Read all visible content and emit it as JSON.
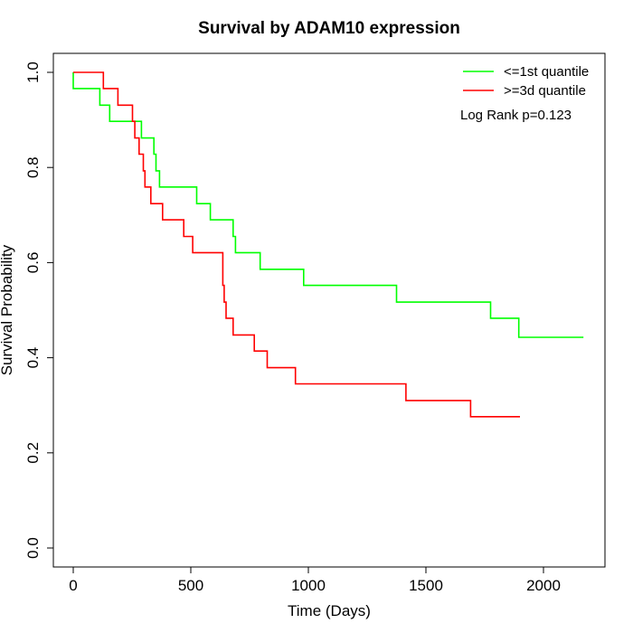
{
  "chart_data": {
    "type": "line",
    "step": true,
    "title": "Survival by ADAM10 expression",
    "xlabel": "Time (Days)",
    "ylabel": "Survival Probability",
    "xlim": [
      0,
      2170
    ],
    "ylim": [
      0,
      1
    ],
    "xticks": [
      0,
      500,
      1000,
      1500,
      2000
    ],
    "yticks": [
      0.0,
      0.2,
      0.4,
      0.6,
      0.8,
      1.0
    ],
    "xtick_labels": [
      "0",
      "500",
      "1000",
      "1500",
      "2000"
    ],
    "ytick_labels": [
      "0.0",
      "0.2",
      "0.4",
      "0.6",
      "0.8",
      "1.0"
    ],
    "grid": false,
    "legend_position": "top-right",
    "annotation": "Log Rank p=0.123",
    "series": [
      {
        "name": "<=1st quantile",
        "color": "#00ff00",
        "x": [
          0,
          0,
          113,
          155,
          290,
          343,
          352,
          367,
          525,
          583,
          680,
          690,
          700,
          795,
          980,
          1375,
          1775,
          1895,
          2170
        ],
        "y": [
          1.0,
          0.966,
          0.931,
          0.897,
          0.862,
          0.828,
          0.793,
          0.759,
          0.724,
          0.69,
          0.655,
          0.621,
          0.621,
          0.586,
          0.552,
          0.517,
          0.483,
          0.443,
          0.443
        ]
      },
      {
        "name": ">=3d quantile",
        "color": "#ff0000",
        "x": [
          0,
          128,
          190,
          252,
          262,
          280,
          298,
          305,
          330,
          380,
          470,
          508,
          636,
          642,
          650,
          680,
          770,
          825,
          945,
          1415,
          1690,
          1900
        ],
        "y": [
          1.0,
          0.966,
          0.931,
          0.897,
          0.862,
          0.828,
          0.793,
          0.759,
          0.724,
          0.69,
          0.655,
          0.621,
          0.552,
          0.517,
          0.483,
          0.448,
          0.414,
          0.379,
          0.345,
          0.31,
          0.276,
          0.276
        ]
      }
    ]
  }
}
